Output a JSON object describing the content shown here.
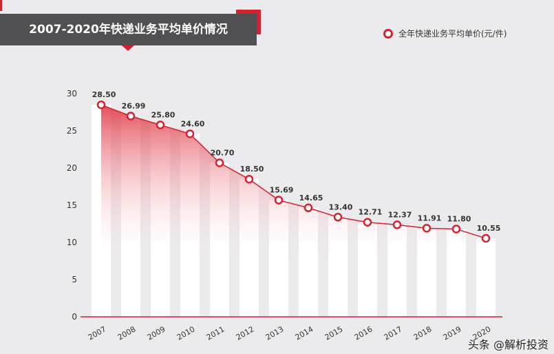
{
  "header": {
    "title": "2007-2020年快递业务平均单价情况"
  },
  "watermark": "头条 @解析投资",
  "chart_data": {
    "type": "line",
    "title": "2007-2020年快递业务平均单价情况",
    "categories": [
      "2007",
      "2008",
      "2009",
      "2010",
      "2011",
      "2012",
      "2013",
      "2014",
      "2015",
      "2016",
      "2017",
      "2018",
      "2019",
      "2020"
    ],
    "series": [
      {
        "name": "全年快递业务平均单价(元/件)",
        "values": [
          28.5,
          26.99,
          25.8,
          24.6,
          20.7,
          18.5,
          15.69,
          14.65,
          13.4,
          12.71,
          12.37,
          11.91,
          11.8,
          10.55
        ]
      }
    ],
    "labels": [
      "28.50",
      "26.99",
      "25.80",
      "24.60",
      "20.70",
      "18.50",
      "15.69",
      "14.65",
      "13.40",
      "12.71",
      "12.37",
      "11.91",
      "11.80",
      "10.55"
    ],
    "yticks": [
      "0",
      "5",
      "10",
      "15",
      "20",
      "25",
      "30"
    ],
    "ylim": [
      0,
      30
    ],
    "legend": "top-right",
    "colors": {
      "line": "#d5202f",
      "title_bg": "#505053"
    }
  }
}
